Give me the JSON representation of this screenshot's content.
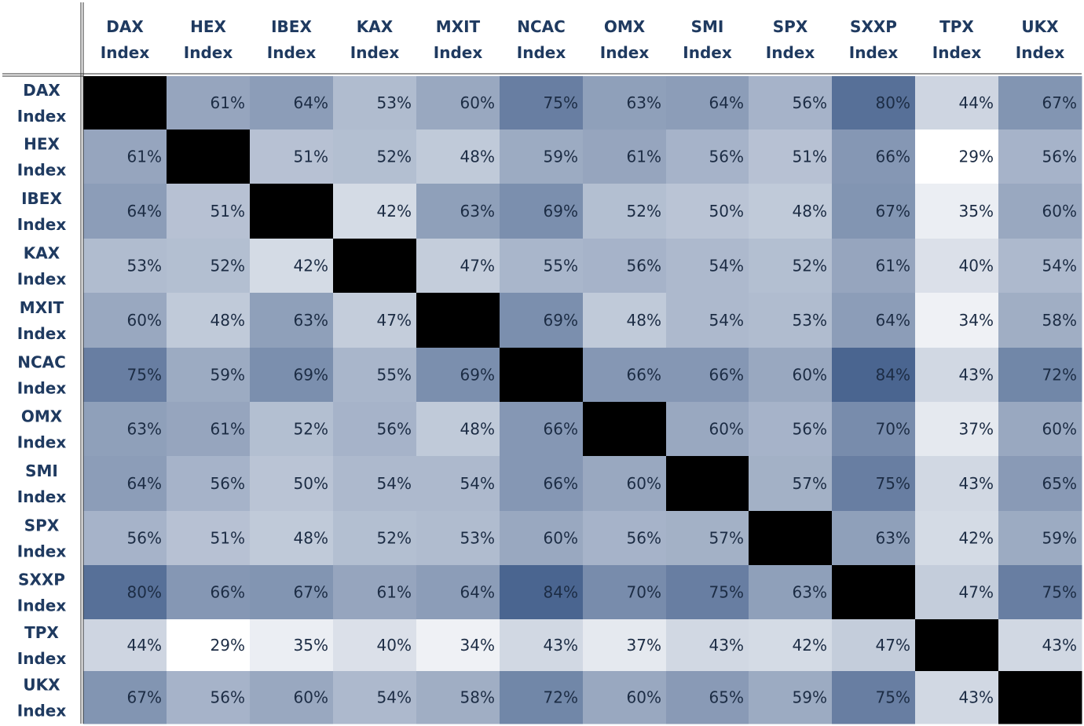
{
  "chart_data": {
    "type": "heatmap",
    "labels": [
      [
        "DAX",
        "Index"
      ],
      [
        "HEX",
        "Index"
      ],
      [
        "IBEX",
        "Index"
      ],
      [
        "KAX",
        "Index"
      ],
      [
        "MXIT",
        "Index"
      ],
      [
        "NCAC",
        "Index"
      ],
      [
        "OMX",
        "Index"
      ],
      [
        "SMI",
        "Index"
      ],
      [
        "SPX",
        "Index"
      ],
      [
        "SXXP",
        "Index"
      ],
      [
        "TPX",
        "Index"
      ],
      [
        "UKX",
        "Index"
      ]
    ],
    "matrix": [
      [
        null,
        61,
        64,
        53,
        60,
        75,
        63,
        64,
        56,
        80,
        44,
        67
      ],
      [
        61,
        null,
        51,
        52,
        48,
        59,
        61,
        56,
        51,
        66,
        29,
        56
      ],
      [
        64,
        51,
        null,
        42,
        63,
        69,
        52,
        50,
        48,
        67,
        35,
        60
      ],
      [
        53,
        52,
        42,
        null,
        47,
        55,
        56,
        54,
        52,
        61,
        40,
        54
      ],
      [
        60,
        48,
        63,
        47,
        null,
        69,
        48,
        54,
        53,
        64,
        34,
        58
      ],
      [
        75,
        59,
        69,
        55,
        69,
        null,
        66,
        66,
        60,
        84,
        43,
        72
      ],
      [
        63,
        61,
        52,
        56,
        48,
        66,
        null,
        60,
        56,
        70,
        37,
        60
      ],
      [
        64,
        56,
        50,
        54,
        54,
        66,
        60,
        null,
        57,
        75,
        43,
        65
      ],
      [
        56,
        51,
        48,
        52,
        53,
        60,
        56,
        57,
        null,
        63,
        42,
        59
      ],
      [
        80,
        66,
        67,
        61,
        64,
        84,
        70,
        75,
        63,
        null,
        47,
        75
      ],
      [
        44,
        29,
        35,
        40,
        34,
        43,
        37,
        43,
        42,
        47,
        null,
        43
      ],
      [
        67,
        56,
        60,
        54,
        58,
        72,
        60,
        65,
        59,
        75,
        43,
        null
      ]
    ],
    "value_suffix": "%",
    "color_low": "#ffffff",
    "color_high": "#4a6590",
    "diagonal_color": "#000000",
    "text_color": "#1c2c44",
    "header_color": "#1f3a60"
  }
}
